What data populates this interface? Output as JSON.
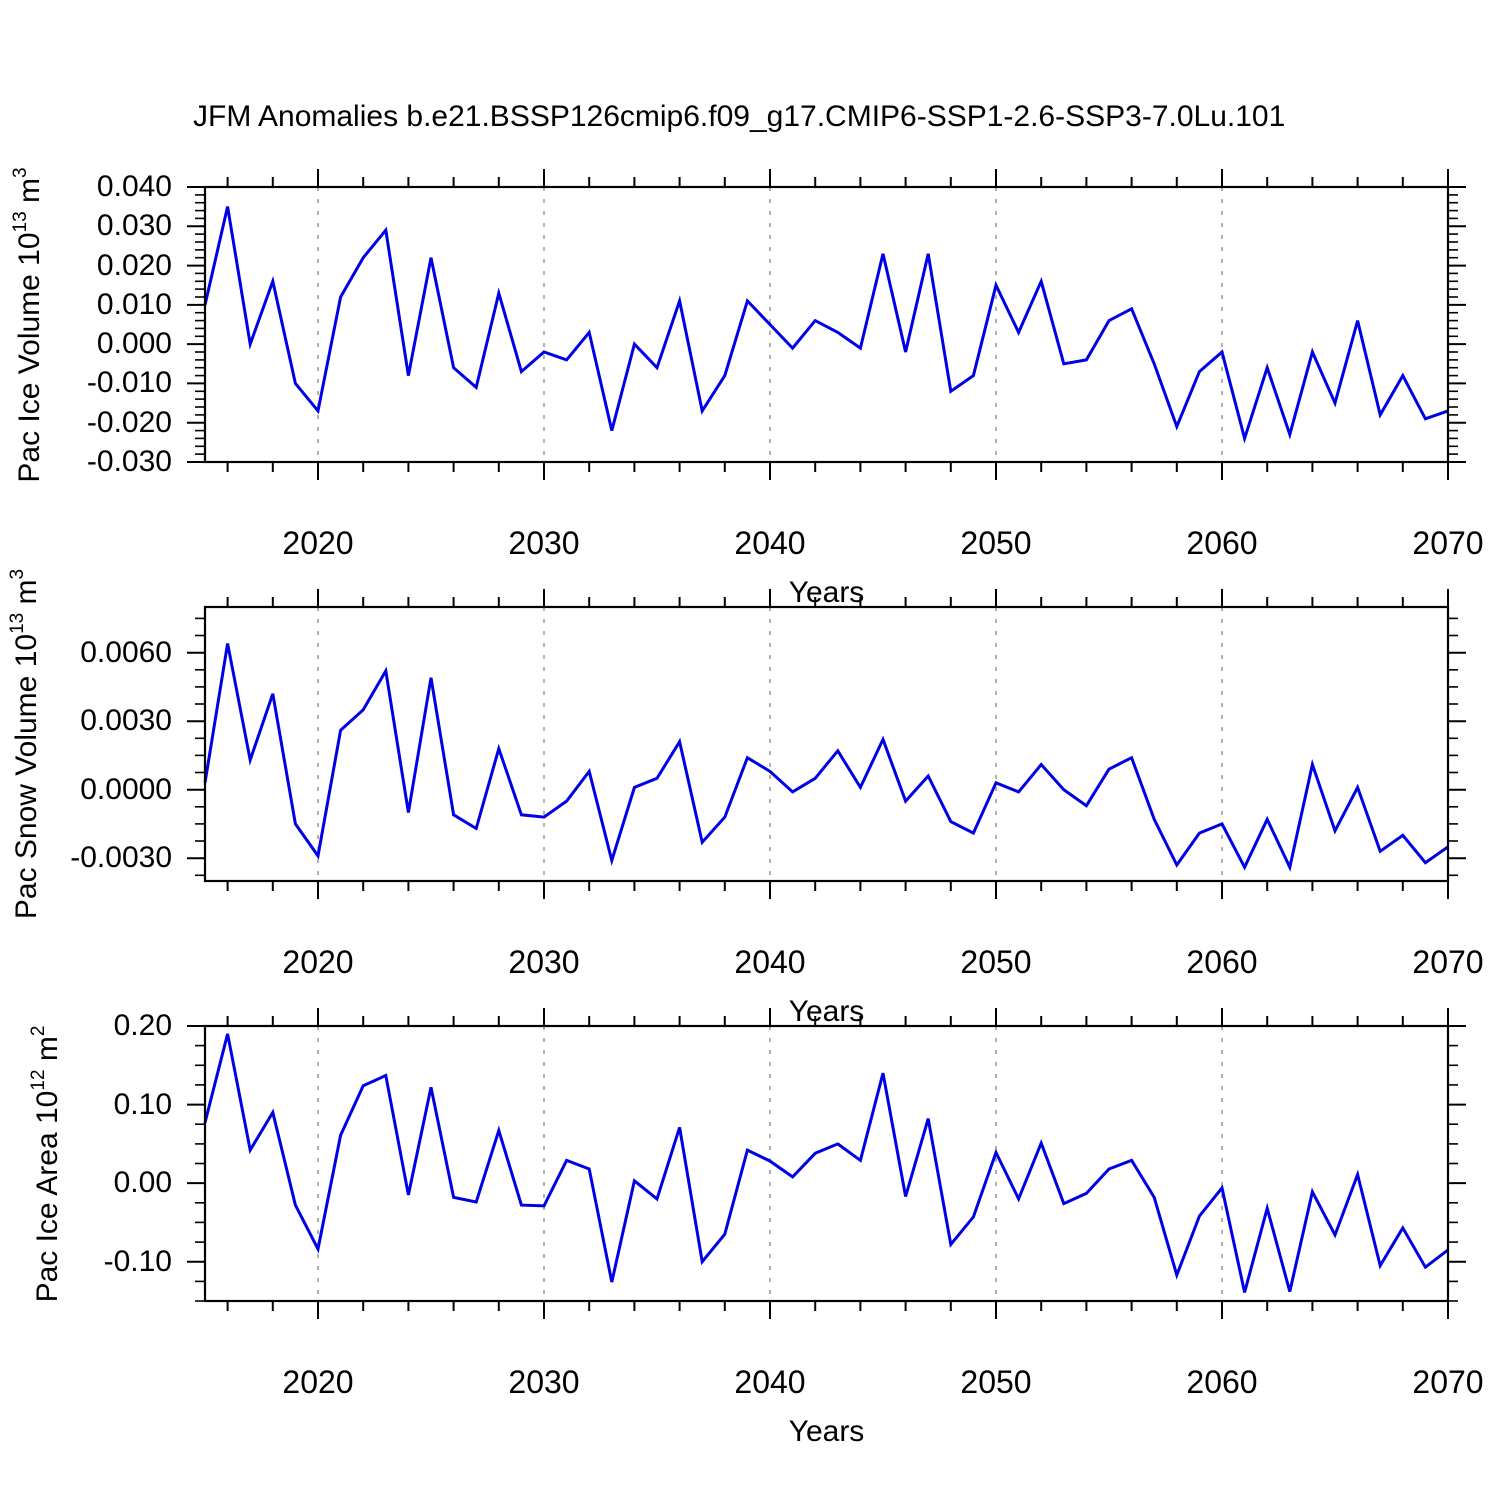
{
  "chart_data": {
    "type": "line",
    "title": "JFM Anomalies b.e21.BSSP126cmip6.f09_g17.CMIP6-SSP1-2.6-SSP3-7.0Lu.101",
    "xlabel": "Years",
    "x_start": 2015,
    "x_end": 2070,
    "x_tick_labels": [
      "2020",
      "2030",
      "2040",
      "2050",
      "2060",
      "2070"
    ],
    "x_minor_tick_step_years": 2,
    "grid_years": [
      2020,
      2030,
      2040,
      2050,
      2060
    ],
    "grid_style": "dashed",
    "line_color": "#0000e6",
    "grid_color": "#909090",
    "axis_color": "#000000",
    "panels": [
      {
        "name": "pac-ice-volume",
        "ylabel_parts": [
          "Pac Ice Volume 10",
          "13",
          " m",
          "3"
        ],
        "ylim": [
          -0.03,
          0.04
        ],
        "major_step": 0.01,
        "minor_step": 0.002,
        "ytick_values": [
          0.04,
          0.03,
          0.02,
          0.01,
          0.0,
          -0.01,
          -0.02,
          -0.03
        ],
        "ytick_labels": [
          "0.040",
          "0.030",
          "0.020",
          "0.010",
          "0.000",
          "-0.010",
          "-0.020",
          "-0.030"
        ],
        "values": [
          0.01,
          0.035,
          0.0,
          0.016,
          -0.01,
          -0.017,
          0.012,
          0.022,
          0.029,
          -0.008,
          0.022,
          -0.006,
          -0.011,
          0.013,
          -0.007,
          -0.002,
          -0.004,
          0.003,
          -0.022,
          0.0,
          -0.006,
          0.011,
          -0.017,
          -0.008,
          0.011,
          0.005,
          -0.001,
          0.006,
          0.003,
          -0.001,
          0.023,
          -0.002,
          0.023,
          -0.012,
          -0.008,
          0.015,
          0.003,
          0.016,
          -0.005,
          -0.004,
          0.006,
          0.009,
          -0.005,
          -0.021,
          -0.007,
          -0.002,
          -0.024,
          -0.006,
          -0.023,
          -0.002,
          -0.015,
          0.006,
          -0.018,
          -0.008,
          -0.019,
          -0.017
        ]
      },
      {
        "name": "pac-snow-volume",
        "ylabel_parts": [
          "Pac Snow Volume 10",
          "13",
          " m",
          "3"
        ],
        "ylim": [
          -0.004,
          0.008
        ],
        "major_step": 0.003,
        "minor_step": 0.00075,
        "ytick_values": [
          0.006,
          0.003,
          0.0,
          -0.003
        ],
        "ytick_labels": [
          "0.0060",
          "0.0030",
          "0.0000",
          "-0.0030"
        ],
        "values": [
          0.0003,
          0.0064,
          0.0013,
          0.0042,
          -0.0015,
          -0.0029,
          0.0026,
          0.0035,
          0.0052,
          -0.001,
          0.0049,
          -0.0011,
          -0.0017,
          0.0018,
          -0.0011,
          -0.0012,
          -0.0005,
          0.0008,
          -0.0031,
          0.0001,
          0.0005,
          0.0021,
          -0.0023,
          -0.0012,
          0.0014,
          0.0008,
          -0.0001,
          0.0005,
          0.0017,
          0.0001,
          0.0022,
          -0.0005,
          0.0006,
          -0.0014,
          -0.0019,
          0.0003,
          -0.0001,
          0.0011,
          0.0,
          -0.0007,
          0.0009,
          0.0014,
          -0.0013,
          -0.0033,
          -0.0019,
          -0.0015,
          -0.0034,
          -0.0013,
          -0.0034,
          0.0011,
          -0.0018,
          0.0001,
          -0.0027,
          -0.002,
          -0.0032,
          -0.0025
        ]
      },
      {
        "name": "pac-ice-area",
        "ylabel_parts": [
          "Pac Ice Area 10",
          "12",
          " m",
          "2"
        ],
        "ylim": [
          -0.15,
          0.2
        ],
        "major_step": 0.1,
        "minor_step": 0.025,
        "ytick_values": [
          0.2,
          0.1,
          0.0,
          -0.1
        ],
        "ytick_labels": [
          "0.20",
          "0.10",
          "0.00",
          "-0.10"
        ],
        "values": [
          0.077,
          0.19,
          0.042,
          0.09,
          -0.028,
          -0.084,
          0.061,
          0.124,
          0.137,
          -0.015,
          0.122,
          -0.018,
          -0.024,
          0.067,
          -0.028,
          -0.029,
          0.029,
          0.018,
          -0.126,
          0.003,
          -0.02,
          0.071,
          -0.1,
          -0.065,
          0.042,
          0.028,
          0.008,
          0.038,
          0.05,
          0.029,
          0.14,
          -0.017,
          0.082,
          -0.078,
          -0.043,
          0.039,
          -0.02,
          0.051,
          -0.026,
          -0.013,
          0.018,
          0.029,
          -0.018,
          -0.117,
          -0.042,
          -0.006,
          -0.139,
          -0.032,
          -0.138,
          -0.011,
          -0.066,
          0.011,
          -0.105,
          -0.057,
          -0.107,
          -0.085
        ]
      }
    ]
  }
}
